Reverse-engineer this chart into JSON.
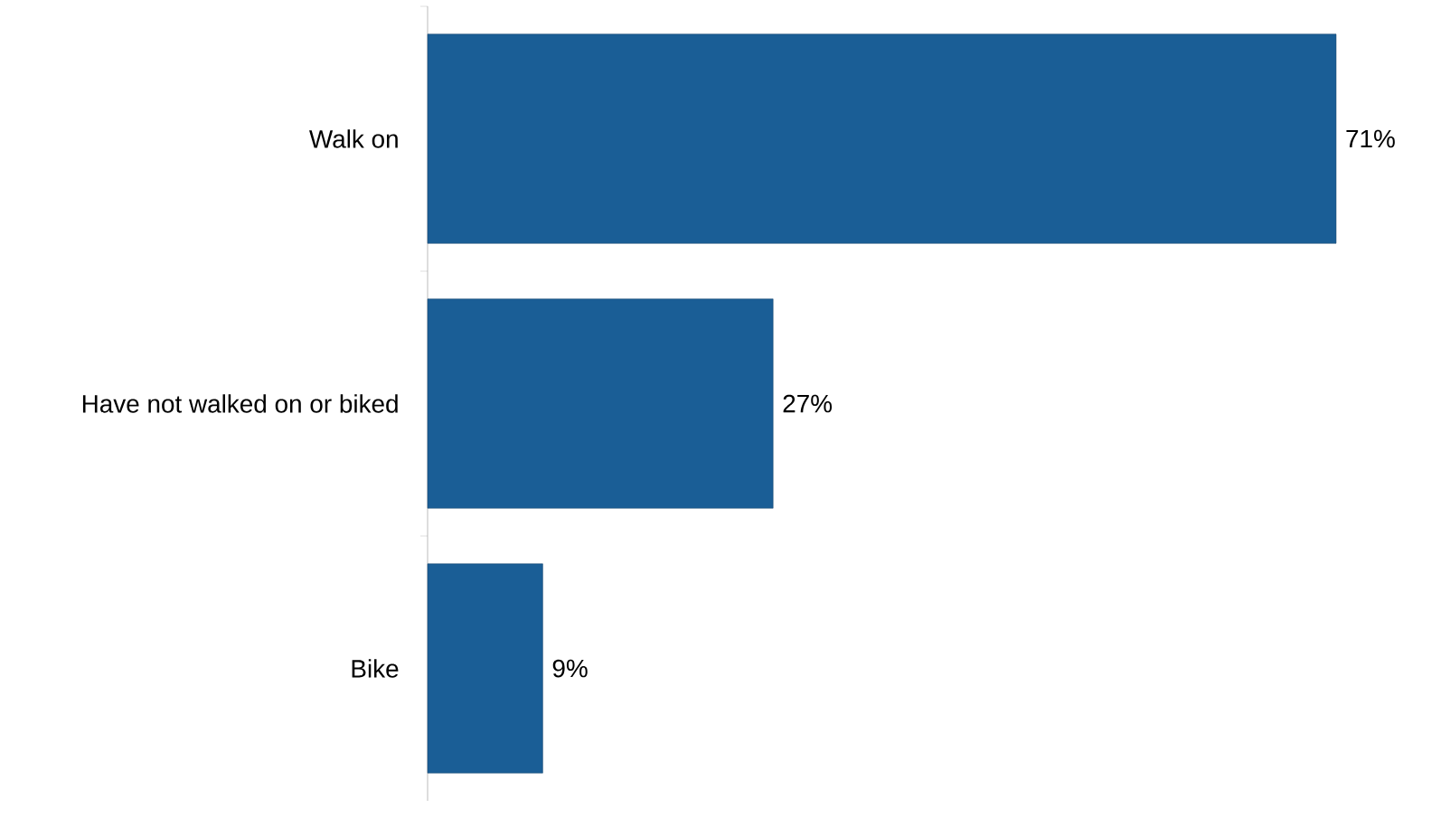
{
  "chart_data": {
    "type": "bar",
    "orientation": "horizontal",
    "categories": [
      "Walk on",
      "Have not walked on or biked",
      "Bike"
    ],
    "values": [
      71,
      27,
      9
    ],
    "value_labels": [
      "71%",
      "27%",
      "9%"
    ],
    "color": "#1a5e96"
  }
}
